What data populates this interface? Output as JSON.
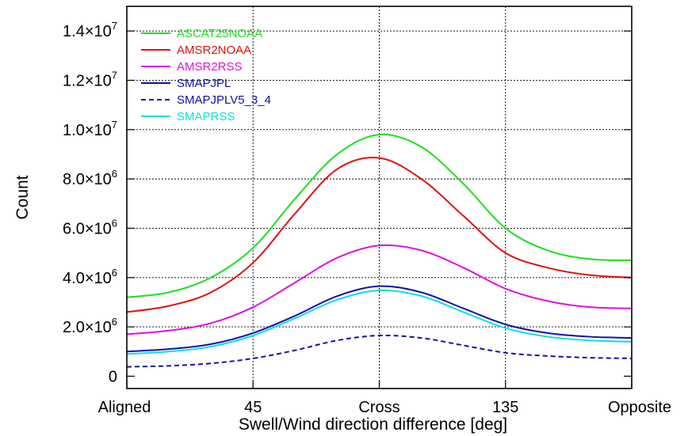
{
  "chart_data": {
    "type": "line",
    "xlabel": "Swell/Wind direction difference [deg]",
    "ylabel": "Count",
    "x_ticks": [
      {
        "value": 0,
        "label": "Aligned"
      },
      {
        "value": 45,
        "label": "45"
      },
      {
        "value": 90,
        "label": "Cross"
      },
      {
        "value": 135,
        "label": "135"
      },
      {
        "value": 180,
        "label": "Opposite"
      }
    ],
    "y_ticks": [
      {
        "value": 0,
        "mant": "0",
        "exp": ""
      },
      {
        "value": 2000000,
        "mant": "2.0×10",
        "exp": "6"
      },
      {
        "value": 4000000,
        "mant": "4.0×10",
        "exp": "6"
      },
      {
        "value": 6000000,
        "mant": "6.0×10",
        "exp": "6"
      },
      {
        "value": 8000000,
        "mant": "8.0×10",
        "exp": "6"
      },
      {
        "value": 10000000,
        "mant": "1.0×10",
        "exp": "7"
      },
      {
        "value": 12000000,
        "mant": "1.2×10",
        "exp": "7"
      },
      {
        "value": 14000000,
        "mant": "1.4×10",
        "exp": "7"
      }
    ],
    "xlim": [
      0,
      180
    ],
    "ylim": [
      -500000,
      15000000
    ],
    "grid": true,
    "legend_position": "top-left",
    "x": [
      0,
      15,
      30,
      45,
      60,
      75,
      90,
      105,
      120,
      135,
      150,
      165,
      180
    ],
    "series": [
      {
        "name": "ASCAT25NOAA",
        "color": "#22dd22",
        "dash": false,
        "values": [
          3200000,
          3400000,
          4000000,
          5200000,
          7200000,
          9000000,
          9800000,
          9300000,
          7800000,
          6000000,
          5100000,
          4750000,
          4700000
        ]
      },
      {
        "name": "AMSR2NOAA",
        "color": "#dd1111",
        "dash": false,
        "values": [
          2600000,
          2850000,
          3400000,
          4600000,
          6600000,
          8400000,
          8850000,
          8000000,
          6500000,
          5000000,
          4400000,
          4100000,
          4000000
        ]
      },
      {
        "name": "AMSR2RSS",
        "color": "#dd11dd",
        "dash": false,
        "values": [
          1700000,
          1850000,
          2150000,
          2800000,
          3800000,
          4800000,
          5300000,
          5100000,
          4400000,
          3550000,
          3050000,
          2800000,
          2750000
        ]
      },
      {
        "name": "SMAPJPL",
        "color": "#1111aa",
        "dash": false,
        "values": [
          1000000,
          1100000,
          1300000,
          1750000,
          2450000,
          3250000,
          3650000,
          3400000,
          2750000,
          2100000,
          1750000,
          1600000,
          1550000
        ]
      },
      {
        "name": "SMAPJPLV5_3_4",
        "color": "#1111aa",
        "dash": true,
        "values": [
          380000,
          420000,
          520000,
          720000,
          1050000,
          1450000,
          1650000,
          1550000,
          1250000,
          950000,
          820000,
          750000,
          720000
        ]
      },
      {
        "name": "SMAPRSS",
        "color": "#11dddd",
        "dash": false,
        "values": [
          900000,
          1000000,
          1200000,
          1650000,
          2350000,
          3100000,
          3480000,
          3250000,
          2600000,
          1950000,
          1600000,
          1450000,
          1400000
        ]
      }
    ]
  }
}
